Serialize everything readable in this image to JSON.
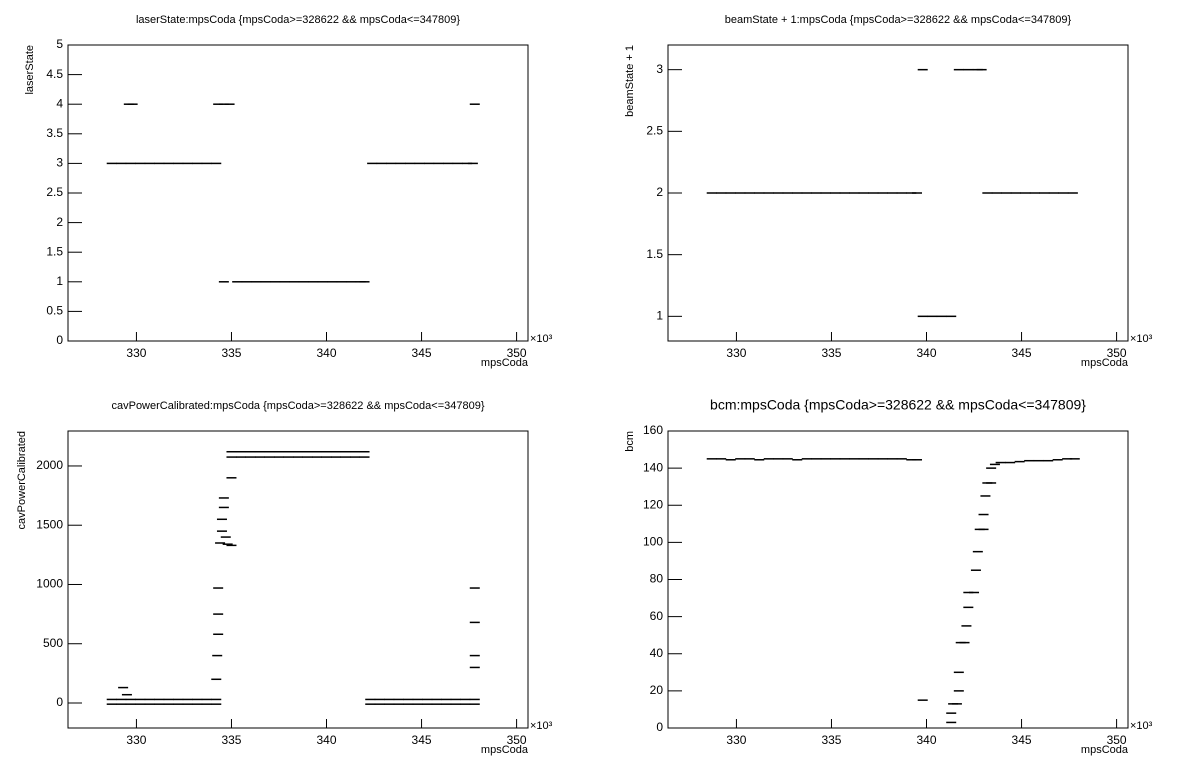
{
  "chart_data": [
    {
      "type": "scatter",
      "title": "laserState:mpsCoda {mpsCoda>=328622 && mpsCoda<=347809}",
      "x_label": "mpsCoda",
      "y_label": "laserState",
      "x_multiplier": "×10³",
      "color": "#000000",
      "xlim": [
        326400,
        350600
      ],
      "ylim": [
        0,
        5
      ],
      "xticks": [
        {
          "value": 330000,
          "label": "330"
        },
        {
          "value": 335000,
          "label": "335"
        },
        {
          "value": 340000,
          "label": "340"
        },
        {
          "value": 345000,
          "label": "345"
        },
        {
          "value": 350000,
          "label": "350"
        }
      ],
      "yticks": [
        0,
        0.5,
        1,
        1.5,
        2,
        2.5,
        3,
        3.5,
        4,
        4.5,
        5
      ],
      "x": [
        328700,
        329200,
        329700,
        330200,
        330700,
        331200,
        331700,
        332200,
        332700,
        333200,
        333700,
        334200,
        329600,
        329800,
        334300,
        334600,
        334900,
        347800,
        334600,
        335300,
        335800,
        336300,
        336800,
        337300,
        337800,
        338300,
        338800,
        339300,
        339800,
        340300,
        340800,
        341300,
        341800,
        342000,
        342400,
        342900,
        343400,
        343900,
        344400,
        344900,
        345400,
        345900,
        346400,
        346900,
        347400,
        347700
      ],
      "values": [
        3,
        3,
        3,
        3,
        3,
        3,
        3,
        3,
        3,
        3,
        3,
        3,
        4,
        4,
        4,
        4,
        4,
        4,
        1,
        1,
        1,
        1,
        1,
        1,
        1,
        1,
        1,
        1,
        1,
        1,
        1,
        1,
        1,
        1,
        3,
        3,
        3,
        3,
        3,
        3,
        3,
        3,
        3,
        3,
        3,
        3
      ]
    },
    {
      "type": "scatter",
      "title": "beamState + 1:mpsCoda {mpsCoda>=328622 && mpsCoda<=347809}",
      "x_label": "mpsCoda",
      "y_label": "beamState + 1",
      "x_multiplier": "×10³",
      "color": "#000000",
      "xlim": [
        326400,
        350600
      ],
      "ylim": [
        0.8,
        3.2
      ],
      "xticks": [
        {
          "value": 330000,
          "label": "330"
        },
        {
          "value": 335000,
          "label": "335"
        },
        {
          "value": 340000,
          "label": "340"
        },
        {
          "value": 345000,
          "label": "345"
        },
        {
          "value": 350000,
          "label": "350"
        }
      ],
      "yticks": [
        1,
        1.5,
        2,
        2.5,
        3
      ],
      "x": [
        328700,
        329200,
        329700,
        330200,
        330700,
        331200,
        331700,
        332200,
        332700,
        333200,
        333700,
        334200,
        334700,
        335200,
        335700,
        336200,
        336700,
        337200,
        337700,
        338200,
        338700,
        339200,
        339500,
        339800,
        339800,
        340300,
        340800,
        341300,
        341700,
        342200,
        342700,
        342900,
        343200,
        343700,
        344200,
        344700,
        345200,
        345700,
        346200,
        346700,
        347200,
        347700
      ],
      "values": [
        2,
        2,
        2,
        2,
        2,
        2,
        2,
        2,
        2,
        2,
        2,
        2,
        2,
        2,
        2,
        2,
        2,
        2,
        2,
        2,
        2,
        2,
        2,
        3,
        1,
        1,
        1,
        1,
        3,
        3,
        3,
        3,
        2,
        2,
        2,
        2,
        2,
        2,
        2,
        2,
        2,
        2
      ]
    },
    {
      "type": "scatter",
      "title": "cavPowerCalibrated:mpsCoda {mpsCoda>=328622 && mpsCoda<=347809}",
      "x_label": "mpsCoda",
      "y_label": "cavPowerCalibrated",
      "x_multiplier": "×10³",
      "color": "#000000",
      "xlim": [
        326400,
        350600
      ],
      "ylim": [
        -211,
        2295
      ],
      "xticks": [
        {
          "value": 330000,
          "label": "330"
        },
        {
          "value": 335000,
          "label": "335"
        },
        {
          "value": 340000,
          "label": "340"
        },
        {
          "value": 345000,
          "label": "345"
        },
        {
          "value": 350000,
          "label": "350"
        }
      ],
      "yticks": [
        0,
        500,
        1000,
        1500,
        2000
      ],
      "x": [
        328700,
        329200,
        329700,
        330200,
        330700,
        331200,
        331700,
        332200,
        332700,
        333200,
        333700,
        334200,
        328700,
        329200,
        329700,
        330200,
        330700,
        331200,
        331700,
        332200,
        332700,
        333200,
        333700,
        334200,
        334200,
        334250,
        334300,
        334300,
        334300,
        334400,
        334500,
        334500,
        334600,
        334600,
        334700,
        334800,
        335000,
        335000,
        329300,
        329500,
        335000,
        335500,
        336000,
        336500,
        337000,
        337500,
        338000,
        338500,
        339000,
        339500,
        340000,
        340500,
        341000,
        341500,
        342000,
        335000,
        335500,
        336000,
        336500,
        337000,
        337500,
        338000,
        338500,
        339000,
        339500,
        340000,
        340500,
        341000,
        341500,
        342000,
        342300,
        342800,
        343300,
        343800,
        344300,
        344800,
        345300,
        345800,
        346300,
        346800,
        347300,
        347800,
        342300,
        342800,
        343300,
        343800,
        344300,
        344800,
        345300,
        345800,
        346300,
        346800,
        347300,
        347800,
        347800,
        347800,
        347800,
        347800
      ],
      "values": [
        30,
        30,
        30,
        30,
        30,
        30,
        30,
        30,
        30,
        30,
        30,
        30,
        -10,
        -10,
        -10,
        -10,
        -10,
        -10,
        -10,
        -10,
        -10,
        -10,
        -10,
        -10,
        200,
        400,
        580,
        750,
        970,
        1350,
        1450,
        1550,
        1650,
        1730,
        1400,
        1340,
        1330,
        1900,
        130,
        70,
        2120,
        2120,
        2120,
        2120,
        2120,
        2120,
        2120,
        2120,
        2120,
        2120,
        2120,
        2120,
        2120,
        2120,
        2120,
        2075,
        2075,
        2075,
        2075,
        2075,
        2075,
        2075,
        2075,
        2075,
        2075,
        2075,
        2075,
        2075,
        2075,
        2075,
        30,
        30,
        30,
        30,
        30,
        30,
        30,
        30,
        30,
        30,
        30,
        30,
        -10,
        -10,
        -10,
        -10,
        -10,
        -10,
        -10,
        -10,
        -10,
        -10,
        -10,
        -10,
        970,
        680,
        400,
        300
      ]
    },
    {
      "type": "scatter",
      "title": "bcm:mpsCoda {mpsCoda>=328622 && mpsCoda<=347809}",
      "x_label": "mpsCoda",
      "y_label": "bcm",
      "x_multiplier": "×10³",
      "color": "#000000",
      "xlim": [
        326400,
        350600
      ],
      "ylim": [
        0,
        160
      ],
      "xticks": [
        {
          "value": 330000,
          "label": "330"
        },
        {
          "value": 335000,
          "label": "335"
        },
        {
          "value": 340000,
          "label": "340"
        },
        {
          "value": 345000,
          "label": "345"
        },
        {
          "value": 350000,
          "label": "350"
        }
      ],
      "yticks": [
        0,
        20,
        40,
        60,
        80,
        100,
        120,
        140,
        160
      ],
      "x": [
        328700,
        329200,
        329700,
        330200,
        330700,
        331200,
        331700,
        332200,
        332700,
        333200,
        333700,
        334200,
        334700,
        335200,
        335700,
        336200,
        336700,
        337200,
        337700,
        338200,
        338700,
        339200,
        339500,
        339800,
        341300,
        341300,
        341400,
        341600,
        341700,
        341700,
        341800,
        342000,
        342100,
        342200,
        342200,
        342500,
        342600,
        342700,
        342800,
        343000,
        343000,
        343100,
        343200,
        343400,
        343400,
        343600,
        343900,
        344400,
        344900,
        345400,
        345900,
        346400,
        346900,
        347400,
        347800
      ],
      "values": [
        145,
        145,
        144.5,
        145,
        145,
        144.5,
        145,
        145,
        145,
        144.5,
        145,
        145,
        145,
        145,
        145,
        145,
        145,
        145,
        145,
        145,
        145,
        144.5,
        144.5,
        15,
        3,
        8,
        13,
        13,
        20,
        30,
        46,
        46,
        55,
        65,
        73,
        73,
        85,
        95,
        107,
        107,
        115,
        125,
        132,
        132,
        140,
        142,
        143,
        143,
        143.5,
        144,
        144,
        144,
        144.5,
        145,
        145
      ]
    }
  ]
}
